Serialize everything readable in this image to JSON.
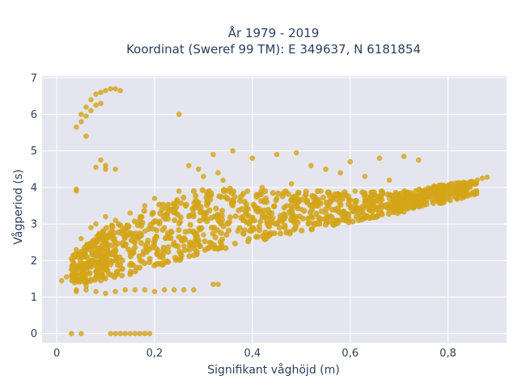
{
  "chart_data": {
    "type": "scatter",
    "title_line1": "År 1979 - 2019",
    "title_line2": "Koordinat (Sweref 99 TM): E 349637, N 6181854",
    "xlabel": "Signifikant våghöjd (m)",
    "ylabel": "Vågperiod (s)",
    "xlim": [
      -0.03,
      0.92
    ],
    "ylim": [
      -0.25,
      7.05
    ],
    "x_ticks": [
      0,
      0.2,
      0.4,
      0.6,
      0.8
    ],
    "x_tick_labels": [
      "0",
      "0,2",
      "0,4",
      "0,6",
      "0,8"
    ],
    "y_ticks": [
      0,
      1,
      2,
      3,
      4,
      5,
      6,
      7
    ],
    "y_tick_labels": [
      "0",
      "1",
      "2",
      "3",
      "4",
      "5",
      "6",
      "7"
    ],
    "grid": true,
    "marker_color": "#d4a418",
    "plot_bg": "#e5e5ef",
    "points": [
      [
        0.01,
        1.45
      ],
      [
        0.02,
        1.55
      ],
      [
        0.03,
        1.75
      ],
      [
        0.03,
        2.05
      ],
      [
        0.04,
        1.2
      ],
      [
        0.04,
        2.3
      ],
      [
        0.05,
        1.5
      ],
      [
        0.05,
        2.6
      ],
      [
        0.06,
        1.3
      ],
      [
        0.06,
        1.9
      ],
      [
        0.07,
        2.4
      ],
      [
        0.07,
        2.9
      ],
      [
        0.08,
        1.7
      ],
      [
        0.08,
        3.0
      ],
      [
        0.09,
        2.2
      ],
      [
        0.1,
        1.85
      ],
      [
        0.1,
        2.6
      ],
      [
        0.1,
        3.2
      ],
      [
        0.11,
        2.0
      ],
      [
        0.12,
        2.4
      ],
      [
        0.12,
        3.1
      ],
      [
        0.13,
        1.9
      ],
      [
        0.14,
        2.7
      ],
      [
        0.15,
        2.2
      ],
      [
        0.15,
        3.3
      ],
      [
        0.16,
        2.5
      ],
      [
        0.17,
        2.0
      ],
      [
        0.18,
        2.8
      ],
      [
        0.18,
        3.5
      ],
      [
        0.19,
        2.3
      ],
      [
        0.2,
        2.6
      ],
      [
        0.2,
        3.7
      ],
      [
        0.21,
        2.1
      ],
      [
        0.22,
        2.9
      ],
      [
        0.23,
        3.4
      ],
      [
        0.24,
        2.5
      ],
      [
        0.25,
        3.0
      ],
      [
        0.25,
        3.9
      ],
      [
        0.26,
        2.4
      ],
      [
        0.27,
        3.2
      ],
      [
        0.28,
        2.8
      ],
      [
        0.29,
        3.6
      ],
      [
        0.3,
        2.7
      ],
      [
        0.3,
        3.3
      ],
      [
        0.31,
        3.8
      ],
      [
        0.32,
        2.9
      ],
      [
        0.33,
        3.1
      ],
      [
        0.34,
        4.2
      ],
      [
        0.35,
        3.0
      ],
      [
        0.36,
        3.5
      ],
      [
        0.37,
        2.8
      ],
      [
        0.38,
        3.2
      ],
      [
        0.39,
        3.9
      ],
      [
        0.4,
        3.1
      ],
      [
        0.41,
        3.4
      ],
      [
        0.42,
        4.0
      ],
      [
        0.43,
        3.0
      ],
      [
        0.44,
        3.3
      ],
      [
        0.45,
        3.7
      ],
      [
        0.46,
        3.1
      ],
      [
        0.47,
        3.5
      ],
      [
        0.48,
        4.1
      ],
      [
        0.49,
        3.2
      ],
      [
        0.5,
        3.4
      ],
      [
        0.51,
        3.8
      ],
      [
        0.52,
        3.2
      ],
      [
        0.53,
        3.5
      ],
      [
        0.54,
        3.9
      ],
      [
        0.55,
        3.3
      ],
      [
        0.56,
        3.6
      ],
      [
        0.57,
        3.4
      ],
      [
        0.58,
        3.7
      ],
      [
        0.59,
        3.3
      ],
      [
        0.6,
        3.5
      ],
      [
        0.61,
        3.9
      ],
      [
        0.62,
        3.4
      ],
      [
        0.63,
        3.6
      ],
      [
        0.64,
        3.5
      ],
      [
        0.65,
        3.8
      ],
      [
        0.66,
        3.6
      ],
      [
        0.67,
        3.5
      ],
      [
        0.68,
        3.7
      ],
      [
        0.69,
        3.6
      ],
      [
        0.7,
        3.8
      ],
      [
        0.71,
        3.6
      ],
      [
        0.72,
        3.7
      ],
      [
        0.73,
        3.8
      ],
      [
        0.74,
        3.7
      ],
      [
        0.75,
        3.9
      ],
      [
        0.76,
        3.8
      ],
      [
        0.77,
        3.8
      ],
      [
        0.78,
        3.9
      ],
      [
        0.79,
        3.85
      ],
      [
        0.8,
        4.0
      ],
      [
        0.81,
        3.9
      ],
      [
        0.82,
        4.05
      ],
      [
        0.83,
        4.0
      ],
      [
        0.84,
        4.1
      ],
      [
        0.85,
        4.15
      ],
      [
        0.86,
        4.2
      ],
      [
        0.87,
        4.25
      ],
      [
        0.88,
        4.28
      ],
      [
        0.04,
        1.15
      ],
      [
        0.06,
        1.2
      ],
      [
        0.08,
        1.15
      ],
      [
        0.1,
        1.1
      ],
      [
        0.12,
        1.15
      ],
      [
        0.14,
        1.2
      ],
      [
        0.16,
        1.2
      ],
      [
        0.18,
        1.2
      ],
      [
        0.2,
        1.15
      ],
      [
        0.22,
        1.2
      ],
      [
        0.24,
        1.2
      ],
      [
        0.26,
        1.2
      ],
      [
        0.28,
        1.2
      ],
      [
        0.32,
        1.35
      ],
      [
        0.33,
        1.35
      ],
      [
        0.03,
        0.0
      ],
      [
        0.05,
        0.0
      ],
      [
        0.11,
        0.0
      ],
      [
        0.12,
        0.0
      ],
      [
        0.13,
        0.0
      ],
      [
        0.14,
        0.0
      ],
      [
        0.15,
        0.0
      ],
      [
        0.16,
        0.0
      ],
      [
        0.17,
        0.0
      ],
      [
        0.18,
        0.0
      ],
      [
        0.19,
        0.0
      ],
      [
        0.04,
        5.65
      ],
      [
        0.05,
        5.8
      ],
      [
        0.05,
        6.0
      ],
      [
        0.06,
        6.2
      ],
      [
        0.06,
        5.95
      ],
      [
        0.07,
        6.4
      ],
      [
        0.07,
        6.1
      ],
      [
        0.08,
        6.55
      ],
      [
        0.08,
        6.25
      ],
      [
        0.09,
        6.6
      ],
      [
        0.09,
        6.3
      ],
      [
        0.1,
        6.65
      ],
      [
        0.11,
        6.7
      ],
      [
        0.12,
        6.7
      ],
      [
        0.13,
        6.65
      ],
      [
        0.06,
        5.4
      ],
      [
        0.08,
        4.55
      ],
      [
        0.09,
        4.75
      ],
      [
        0.1,
        4.5
      ],
      [
        0.1,
        4.6
      ],
      [
        0.04,
        3.9
      ],
      [
        0.04,
        3.95
      ],
      [
        0.25,
        6.0
      ],
      [
        0.12,
        4.5
      ],
      [
        0.32,
        4.9
      ],
      [
        0.36,
        5.0
      ],
      [
        0.4,
        4.8
      ],
      [
        0.45,
        4.9
      ],
      [
        0.49,
        4.95
      ],
      [
        0.6,
        4.7
      ],
      [
        0.66,
        4.8
      ],
      [
        0.71,
        4.85
      ],
      [
        0.74,
        4.75
      ],
      [
        0.52,
        4.6
      ],
      [
        0.55,
        4.5
      ],
      [
        0.58,
        4.4
      ],
      [
        0.63,
        4.3
      ],
      [
        0.68,
        4.2
      ],
      [
        0.27,
        4.6
      ],
      [
        0.29,
        4.5
      ],
      [
        0.3,
        4.3
      ],
      [
        0.33,
        4.4
      ]
    ],
    "dense_bands": [
      {
        "xmin": 0.03,
        "xmax": 0.12,
        "ylo_start": 1.35,
        "yhi_start": 2.1,
        "ylo_end": 1.5,
        "yhi_end": 3.1
      },
      {
        "xmin": 0.12,
        "xmax": 0.3,
        "ylo_start": 1.5,
        "yhi_start": 3.1,
        "ylo_end": 2.2,
        "yhi_end": 4.0
      },
      {
        "xmin": 0.3,
        "xmax": 0.5,
        "ylo_start": 2.2,
        "yhi_start": 4.0,
        "ylo_end": 2.8,
        "yhi_end": 3.9
      },
      {
        "xmin": 0.5,
        "xmax": 0.7,
        "ylo_start": 2.8,
        "yhi_start": 3.9,
        "ylo_end": 3.3,
        "yhi_end": 3.9
      },
      {
        "xmin": 0.7,
        "xmax": 0.86,
        "ylo_start": 3.3,
        "yhi_start": 3.9,
        "ylo_end": 3.8,
        "yhi_end": 4.2
      }
    ]
  }
}
